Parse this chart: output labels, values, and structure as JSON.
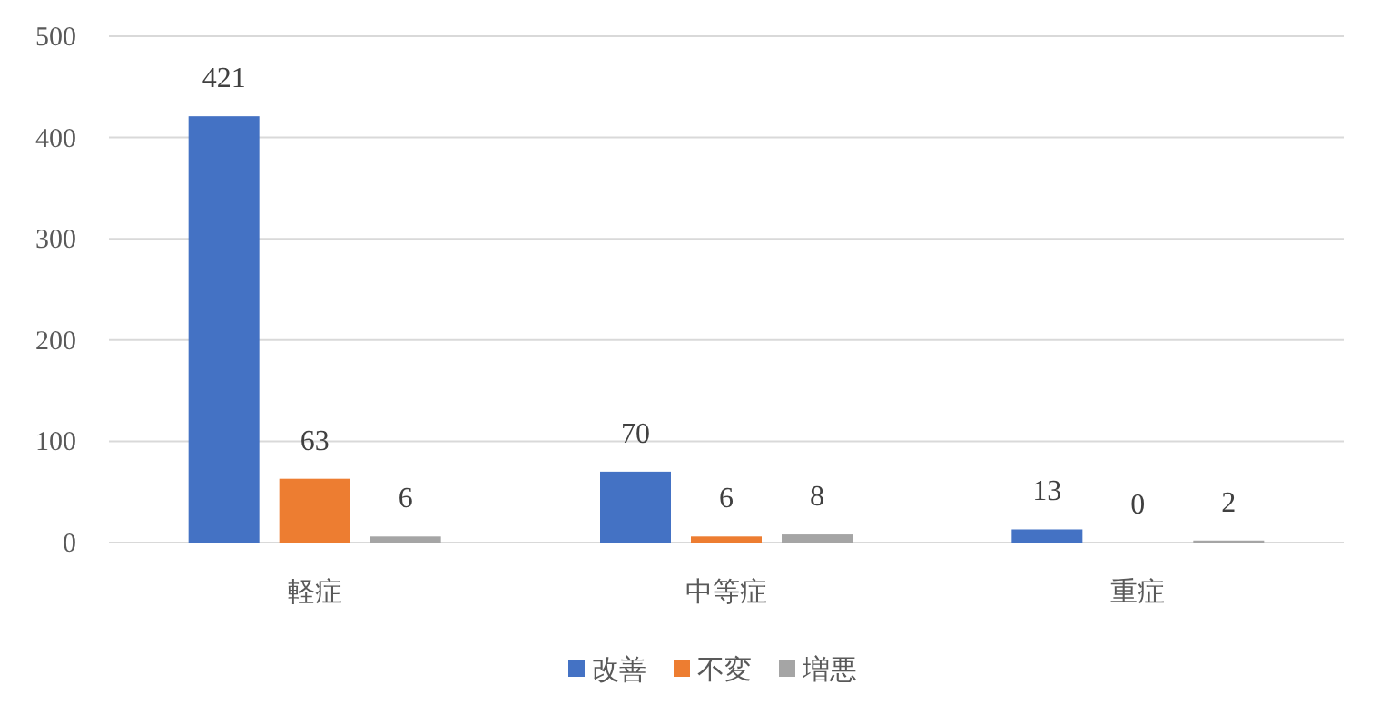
{
  "chart_data": {
    "type": "bar",
    "categories": [
      "軽症",
      "中等症",
      "重症"
    ],
    "series": [
      {
        "name": "改善",
        "color": "#4472c4",
        "values": [
          421,
          70,
          13
        ]
      },
      {
        "name": "不変",
        "color": "#ed7d31",
        "values": [
          63,
          6,
          0
        ]
      },
      {
        "name": "増悪",
        "color": "#a5a5a5",
        "values": [
          6,
          8,
          2
        ]
      }
    ],
    "ylim": [
      0,
      500
    ],
    "yticks": [
      0,
      100,
      200,
      300,
      400,
      500
    ],
    "grid": "y",
    "legend": "bottom",
    "data_labels": true
  }
}
